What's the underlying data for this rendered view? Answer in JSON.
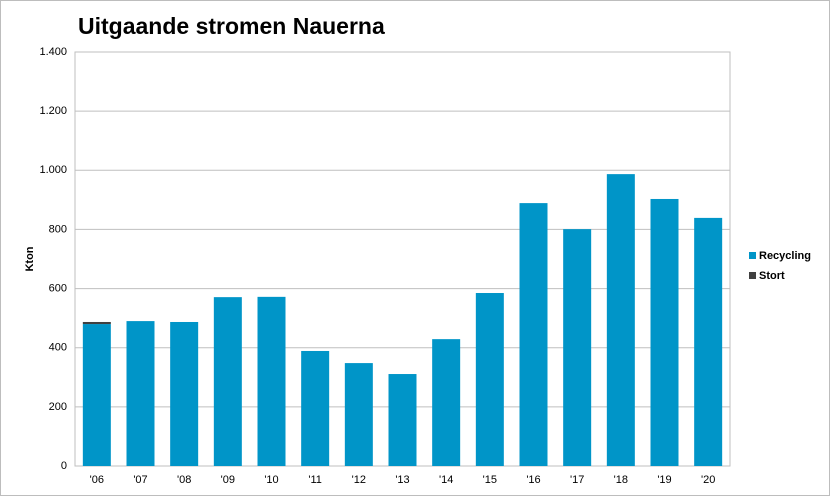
{
  "chart_data": {
    "type": "stacked_bar",
    "title": "Uitgaande stromen Nauerna",
    "y_label": "Kton",
    "categories": [
      "'06",
      "'07",
      "'08",
      "'09",
      "'10",
      "'11",
      "'12",
      "'13",
      "'14",
      "'15",
      "'16",
      "'17",
      "'18",
      "'19",
      "'20"
    ],
    "series": [
      {
        "name": "Recycling",
        "color": "#0095c8",
        "values": [
          480,
          490,
          487,
          571,
          572,
          389,
          348,
          311,
          429,
          585,
          889,
          801,
          987,
          903,
          839
        ]
      },
      {
        "name": "Stort",
        "color": "#404040",
        "values": [
          7,
          0,
          0,
          0,
          0,
          0,
          0,
          0,
          0,
          0,
          0,
          0,
          0,
          0,
          0
        ]
      }
    ],
    "ylim": [
      0,
      1400
    ],
    "yticks": [
      0,
      200,
      400,
      600,
      800,
      {
        "value": 1000,
        "label": "1.000"
      },
      {
        "value": 1200,
        "label": "1.200"
      },
      {
        "value": 1400,
        "label": "1.400"
      }
    ],
    "grid": true,
    "legend": "right"
  }
}
